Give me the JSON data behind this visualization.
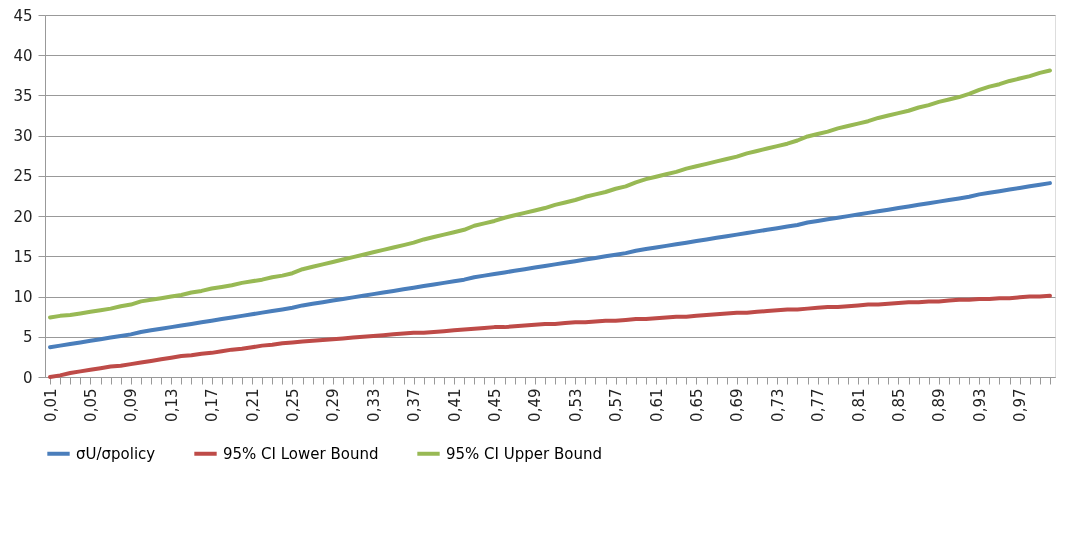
{
  "chart_data": {
    "type": "line",
    "categories": [
      "0,01",
      null,
      null,
      null,
      "0,05",
      null,
      null,
      null,
      "0,09",
      null,
      null,
      null,
      "0,13",
      null,
      null,
      null,
      "0,17",
      null,
      null,
      null,
      "0,21",
      null,
      null,
      null,
      "0,25",
      null,
      null,
      null,
      "0,29",
      null,
      null,
      null,
      "0,33",
      null,
      null,
      null,
      "0,37",
      null,
      null,
      null,
      "0,41",
      null,
      null,
      null,
      "0,45",
      null,
      null,
      null,
      "0,49",
      null,
      null,
      null,
      "0,53",
      null,
      null,
      null,
      "0,57",
      null,
      null,
      null,
      "0,61",
      null,
      null,
      null,
      "0,65",
      null,
      null,
      null,
      "0,69",
      null,
      null,
      null,
      "0,73",
      null,
      null,
      null,
      "0,77",
      null,
      null,
      null,
      "0,81",
      null,
      null,
      null,
      "0,85",
      null,
      null,
      null,
      "0,89",
      null,
      null,
      null,
      "0,93",
      null,
      null,
      null,
      "0,97",
      null,
      null,
      null
    ],
    "series": [
      {
        "name": "σU/σpolicy",
        "color": "#4a7ebb",
        "values": [
          3.7,
          3.9,
          4.1,
          4.3,
          4.5,
          4.7,
          4.9,
          5.1,
          5.3,
          5.6,
          5.8,
          6.0,
          6.2,
          6.4,
          6.6,
          6.8,
          7.0,
          7.2,
          7.4,
          7.6,
          7.8,
          8.0,
          8.2,
          8.4,
          8.6,
          8.9,
          9.1,
          9.3,
          9.5,
          9.7,
          9.9,
          10.1,
          10.3,
          10.5,
          10.7,
          10.9,
          11.1,
          11.3,
          11.5,
          11.7,
          11.9,
          12.1,
          12.4,
          12.6,
          12.8,
          13.0,
          13.2,
          13.4,
          13.6,
          13.8,
          14.0,
          14.2,
          14.4,
          14.6,
          14.8,
          15.0,
          15.2,
          15.4,
          15.7,
          15.9,
          16.1,
          16.3,
          16.5,
          16.7,
          16.9,
          17.1,
          17.3,
          17.5,
          17.7,
          17.9,
          18.1,
          18.3,
          18.5,
          18.7,
          18.9,
          19.2,
          19.4,
          19.6,
          19.8,
          20.0,
          20.2,
          20.4,
          20.6,
          20.8,
          21.0,
          21.2,
          21.4,
          21.6,
          21.8,
          22.0,
          22.2,
          22.4,
          22.7,
          22.9,
          23.1,
          23.3,
          23.5,
          23.7,
          23.9,
          24.1
        ]
      },
      {
        "name": "95% CI Lower Bound",
        "color": "#be4b48",
        "values": [
          0,
          0.2,
          0.5,
          0.7,
          0.9,
          1.1,
          1.3,
          1.4,
          1.6,
          1.8,
          2.0,
          2.2,
          2.4,
          2.6,
          2.7,
          2.9,
          3.0,
          3.2,
          3.4,
          3.5,
          3.7,
          3.9,
          4.0,
          4.2,
          4.3,
          4.4,
          4.5,
          4.6,
          4.7,
          4.8,
          4.9,
          5.0,
          5.1,
          5.2,
          5.3,
          5.4,
          5.5,
          5.5,
          5.6,
          5.7,
          5.8,
          5.9,
          6.0,
          6.1,
          6.2,
          6.2,
          6.3,
          6.4,
          6.5,
          6.6,
          6.6,
          6.7,
          6.8,
          6.8,
          6.9,
          7.0,
          7.0,
          7.1,
          7.2,
          7.2,
          7.3,
          7.4,
          7.5,
          7.5,
          7.6,
          7.7,
          7.8,
          7.9,
          8.0,
          8.0,
          8.1,
          8.2,
          8.3,
          8.4,
          8.4,
          8.5,
          8.6,
          8.7,
          8.7,
          8.8,
          8.9,
          9.0,
          9.0,
          9.1,
          9.2,
          9.3,
          9.3,
          9.4,
          9.4,
          9.5,
          9.6,
          9.6,
          9.7,
          9.7,
          9.8,
          9.8,
          9.9,
          10.0,
          10.0,
          10.1
        ]
      },
      {
        "name": "95% CI Upper Bound",
        "color": "#98b954",
        "values": [
          7.4,
          7.6,
          7.7,
          7.9,
          8.1,
          8.3,
          8.5,
          8.8,
          9.0,
          9.4,
          9.6,
          9.8,
          10.0,
          10.2,
          10.5,
          10.7,
          11.0,
          11.2,
          11.4,
          11.7,
          11.9,
          12.1,
          12.4,
          12.6,
          12.9,
          13.4,
          13.7,
          14.0,
          14.3,
          14.6,
          14.9,
          15.2,
          15.5,
          15.8,
          16.1,
          16.4,
          16.7,
          17.1,
          17.4,
          17.7,
          18.0,
          18.3,
          18.8,
          19.1,
          19.4,
          19.8,
          20.1,
          20.4,
          20.7,
          21.0,
          21.4,
          21.7,
          22.0,
          22.4,
          22.7,
          23.0,
          23.4,
          23.7,
          24.2,
          24.6,
          24.9,
          25.2,
          25.5,
          25.9,
          26.2,
          26.5,
          26.8,
          27.1,
          27.4,
          27.8,
          28.1,
          28.4,
          28.7,
          29.0,
          29.4,
          29.9,
          30.2,
          30.5,
          30.9,
          31.2,
          31.5,
          31.8,
          32.2,
          32.5,
          32.8,
          33.1,
          33.5,
          33.8,
          34.2,
          34.5,
          34.8,
          35.2,
          35.7,
          36.1,
          36.4,
          36.8,
          37.1,
          37.4,
          37.8,
          38.1
        ]
      }
    ],
    "ylim": [
      0,
      45
    ],
    "yticks": [
      0,
      5,
      10,
      15,
      20,
      25,
      30,
      35,
      40,
      45
    ],
    "grid": "y",
    "legend": "bottom",
    "line_style": "solid",
    "marker": "none"
  }
}
